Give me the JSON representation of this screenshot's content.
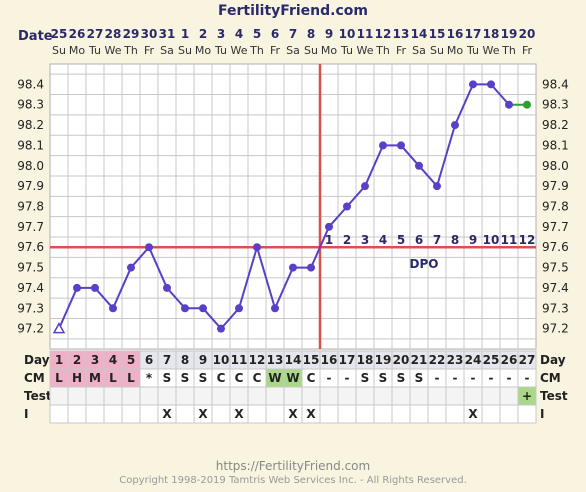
{
  "header": {
    "title": "FertilityFriend.com",
    "date_label": "Date",
    "footer_url": "https://FertilityFriend.com",
    "footer_copyright": "Copyright 1998-2019 Tamtris Web Services Inc. - All Rights Reserved."
  },
  "chart_data": {
    "type": "line",
    "title": "FertilityFriend.com",
    "dates": [
      "25",
      "26",
      "27",
      "28",
      "29",
      "30",
      "31",
      "1",
      "2",
      "3",
      "4",
      "5",
      "6",
      "7",
      "8",
      "9",
      "10",
      "11",
      "12",
      "13",
      "14",
      "15",
      "16",
      "17",
      "18",
      "19",
      "20"
    ],
    "weekdays": [
      "Su",
      "Mo",
      "Tu",
      "We",
      "Th",
      "Fr",
      "Sa",
      "Su",
      "Mo",
      "Tu",
      "We",
      "Th",
      "Fr",
      "Sa",
      "Su",
      "Mo",
      "Tu",
      "We",
      "Th",
      "Fr",
      "Sa",
      "Su",
      "Mo",
      "Tu",
      "We",
      "Th",
      "Fr"
    ],
    "ylim": [
      97.1,
      98.5
    ],
    "yticks": [
      "98.4",
      "98.3",
      "98.2",
      "98.1",
      "98.0",
      "97.9",
      "97.8",
      "97.7",
      "97.6",
      "97.5",
      "97.4",
      "97.3",
      "97.2"
    ],
    "series": [
      {
        "values": [
          97.2,
          97.4,
          97.4,
          97.3,
          97.5,
          97.6,
          97.4,
          97.3,
          97.3,
          97.2,
          97.3,
          97.6,
          97.3,
          97.5,
          97.5,
          97.7,
          97.8,
          97.9,
          98.1,
          98.1,
          98.0,
          97.9,
          98.2,
          98.4,
          98.4,
          98.3,
          98.3
        ]
      }
    ],
    "coverline": 97.6,
    "ovulation_day": 15,
    "dpo_label": "DPO",
    "dpo_numbers": [
      "1",
      "2",
      "3",
      "4",
      "5",
      "6",
      "7",
      "8",
      "9",
      "10",
      "11",
      "12"
    ],
    "rows": {
      "day_label": "Day",
      "days": [
        "1",
        "2",
        "3",
        "4",
        "5",
        "6",
        "7",
        "8",
        "9",
        "10",
        "11",
        "12",
        "13",
        "14",
        "15",
        "16",
        "17",
        "18",
        "19",
        "20",
        "21",
        "22",
        "23",
        "24",
        "25",
        "26",
        "27"
      ],
      "cm_label": "CM",
      "cm": [
        "L",
        "H",
        "M",
        "L",
        "L",
        "*",
        "S",
        "S",
        "S",
        "C",
        "C",
        "C",
        "W",
        "W",
        "C",
        "-",
        "-",
        "S",
        "S",
        "S",
        "S",
        "-",
        "-",
        "-",
        "-",
        "-",
        "-"
      ],
      "test_label": "Test",
      "test": [
        "",
        "",
        "",
        "",
        "",
        "",
        "",
        "",
        "",
        "",
        "",
        "",
        "",
        "",
        "",
        "",
        "",
        "",
        "",
        "",
        "",
        "",
        "",
        "",
        "",
        "",
        "+"
      ],
      "i_label": "I",
      "intercourse": [
        "",
        "",
        "",
        "",
        "",
        "",
        "X",
        "",
        "X",
        "",
        "X",
        "",
        "",
        "X",
        "X",
        "",
        "",
        "",
        "",
        "",
        "",
        "",
        "",
        "X",
        "",
        "",
        ""
      ]
    },
    "colors": {
      "line": "#5a3fc8",
      "final_segment": "#2e9e2e",
      "grid": "#c8c8c8",
      "coverline": "#d85050",
      "ovulation_line": "#d85050",
      "menses": "#f0b0c8",
      "fertile_cm": "#a8d888",
      "positive_test": "#a8d888",
      "text": "#2a2a6a"
    }
  }
}
